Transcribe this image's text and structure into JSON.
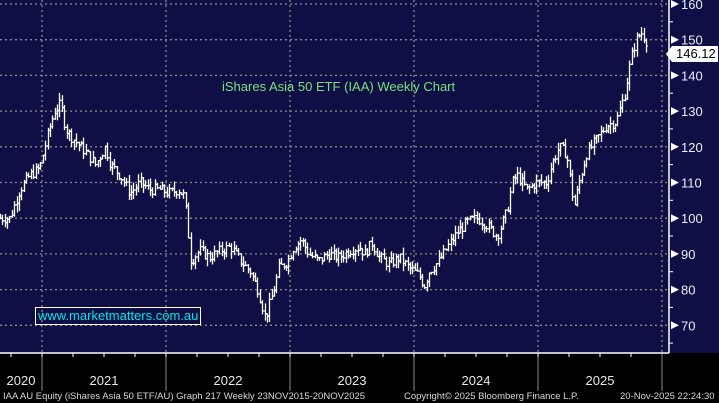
{
  "chart_data": {
    "type": "ohlc",
    "title": "iShares Asia 50 ETF (IAA) Weekly Chart",
    "ylim": [
      62,
      162
    ],
    "y_ticks": [
      160,
      150,
      140,
      130,
      120,
      110,
      100,
      90,
      80,
      70
    ],
    "x_range": [
      2020.66,
      2025.97
    ],
    "x_tick_labels": [
      "2020",
      "2021",
      "2022",
      "2023",
      "2024",
      "2025"
    ],
    "x_year_starts": [
      2021,
      2022,
      2023,
      2024,
      2025
    ],
    "grid": true,
    "last_price": "146.12",
    "series": [
      {
        "name": "IAA AU Equity",
        "points": [
          [
            2020.66,
            100
          ],
          [
            2020.74,
            100
          ],
          [
            2020.82,
            108
          ],
          [
            2020.9,
            112
          ],
          [
            2020.98,
            114
          ],
          [
            2021.05,
            124
          ],
          [
            2021.1,
            130
          ],
          [
            2021.15,
            132
          ],
          [
            2021.19,
            125
          ],
          [
            2021.23,
            123
          ],
          [
            2021.31,
            120
          ],
          [
            2021.39,
            117
          ],
          [
            2021.43,
            115
          ],
          [
            2021.51,
            120
          ],
          [
            2021.55,
            115
          ],
          [
            2021.63,
            112
          ],
          [
            2021.71,
            107
          ],
          [
            2021.79,
            110
          ],
          [
            2021.87,
            108
          ],
          [
            2021.95,
            108
          ],
          [
            2022.02,
            107
          ],
          [
            2022.1,
            108
          ],
          [
            2022.15,
            106
          ],
          [
            2022.18,
            95
          ],
          [
            2022.2,
            88
          ],
          [
            2022.27,
            91
          ],
          [
            2022.35,
            89
          ],
          [
            2022.44,
            91
          ],
          [
            2022.52,
            92
          ],
          [
            2022.6,
            88
          ],
          [
            2022.68,
            85
          ],
          [
            2022.74,
            80
          ],
          [
            2022.8,
            72
          ],
          [
            2022.87,
            80
          ],
          [
            2022.91,
            86
          ],
          [
            2022.98,
            88
          ],
          [
            2023.03,
            92
          ],
          [
            2023.09,
            94
          ],
          [
            2023.15,
            90
          ],
          [
            2023.23,
            88
          ],
          [
            2023.31,
            90
          ],
          [
            2023.39,
            89
          ],
          [
            2023.48,
            91
          ],
          [
            2023.56,
            92
          ],
          [
            2023.6,
            90
          ],
          [
            2023.66,
            93
          ],
          [
            2023.72,
            89
          ],
          [
            2023.8,
            87
          ],
          [
            2023.88,
            89
          ],
          [
            2023.96,
            86
          ],
          [
            2024.04,
            84
          ],
          [
            2024.08,
            81
          ],
          [
            2024.12,
            85
          ],
          [
            2024.2,
            88
          ],
          [
            2024.27,
            92
          ],
          [
            2024.35,
            96
          ],
          [
            2024.43,
            99
          ],
          [
            2024.51,
            100
          ],
          [
            2024.59,
            98
          ],
          [
            2024.67,
            95
          ],
          [
            2024.75,
            102
          ],
          [
            2024.79,
            110
          ],
          [
            2024.83,
            112
          ],
          [
            2024.91,
            108
          ],
          [
            2024.99,
            110
          ],
          [
            2025.07,
            110
          ],
          [
            2025.11,
            115
          ],
          [
            2025.17,
            120
          ],
          [
            2025.23,
            118
          ],
          [
            2025.29,
            103
          ],
          [
            2025.33,
            110
          ],
          [
            2025.39,
            118
          ],
          [
            2025.47,
            122
          ],
          [
            2025.55,
            126
          ],
          [
            2025.63,
            127
          ],
          [
            2025.7,
            135
          ],
          [
            2025.75,
            145
          ],
          [
            2025.79,
            150
          ],
          [
            2025.83,
            152
          ],
          [
            2025.87,
            150
          ],
          [
            2025.89,
            146.12
          ]
        ]
      }
    ]
  },
  "watermark": "www.marketmatters.com.au",
  "footer": {
    "left": "IAA AU Equity (iShares Asia 50 ETF/AU) Graph 217 Weekly 23NOV2015-20NOV2025",
    "center": "Copyright© 2025 Bloomberg Finance L.P.",
    "right": "20-Nov-2025 22:24:30"
  },
  "colors": {
    "background": "#0f0f45",
    "bars": "#ffffff",
    "title": "#7be07b",
    "watermark": "#00e5e5",
    "grid": "#8a8a8a"
  }
}
